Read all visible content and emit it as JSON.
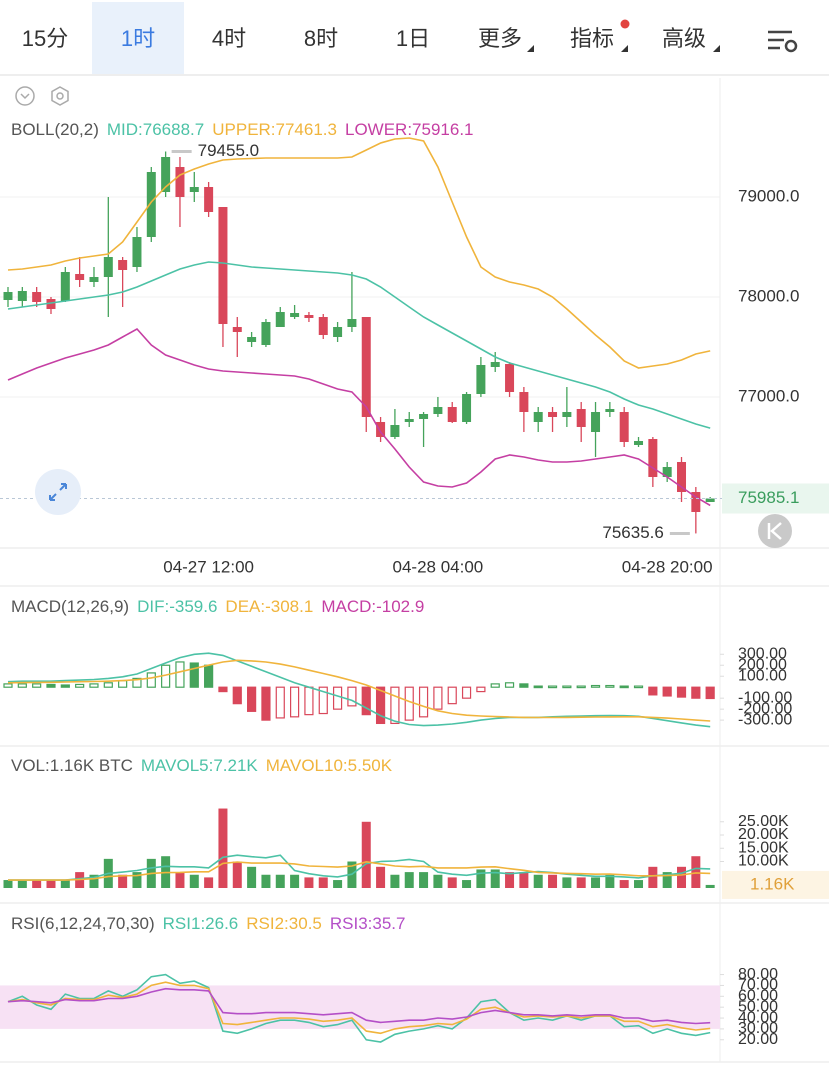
{
  "toolbar": {
    "tabs": [
      "15分",
      "1时",
      "4时",
      "8时",
      "1日",
      "更多",
      "指标",
      "高级"
    ],
    "selected": 1
  },
  "chart_data": [
    {
      "type": "candlestick",
      "title": "BOLL(20,2)",
      "categories": [
        null,
        null,
        null,
        null,
        null,
        null,
        null,
        null,
        null,
        null,
        null,
        null,
        null,
        null,
        "04-27 12:00",
        null,
        null,
        null,
        null,
        null,
        null,
        null,
        null,
        null,
        null,
        null,
        null,
        null,
        null,
        null,
        "04-28 04:00",
        null,
        null,
        null,
        null,
        null,
        null,
        null,
        null,
        null,
        null,
        null,
        null,
        null,
        null,
        null,
        "04-28 20:00",
        null,
        null,
        null
      ],
      "open": [
        77970,
        77960,
        78050,
        77980,
        77960,
        78230,
        78150,
        78200,
        78370,
        78300,
        78600,
        79050,
        79300,
        79050,
        79100,
        78900,
        77700,
        77550,
        77520,
        77700,
        77800,
        77820,
        77800,
        77600,
        77700,
        77800,
        76750,
        76600,
        76750,
        76780,
        76830,
        76900,
        76750,
        77030,
        77300,
        77330,
        77050,
        76750,
        76850,
        76800,
        76880,
        76650,
        76850,
        76850,
        76520,
        76580,
        76200,
        76350,
        76050,
        75950
      ],
      "high": [
        78100,
        78100,
        78100,
        78000,
        78300,
        78400,
        78300,
        79000,
        78400,
        78700,
        79300,
        79455,
        79400,
        79250,
        79150,
        78900,
        77800,
        77650,
        77780,
        77900,
        77920,
        77850,
        77830,
        77750,
        78250,
        77800,
        76800,
        76880,
        76850,
        76850,
        77000,
        76950,
        77050,
        77400,
        77450,
        77350,
        77100,
        76900,
        76900,
        77100,
        76950,
        76950,
        76950,
        76900,
        76600,
        76600,
        76350,
        76400,
        76100,
        76000
      ],
      "low": [
        77900,
        77900,
        77900,
        77830,
        77950,
        78100,
        78100,
        77800,
        77900,
        78250,
        78550,
        79000,
        78700,
        78950,
        78800,
        77500,
        77400,
        77500,
        77500,
        77700,
        77780,
        77750,
        77580,
        77550,
        77650,
        76650,
        76550,
        76580,
        76700,
        76500,
        76800,
        76740,
        76730,
        77000,
        77250,
        77000,
        76650,
        76650,
        76650,
        76700,
        76550,
        76400,
        76800,
        76500,
        76500,
        76100,
        76150,
        75950,
        75635.6,
        75950
      ],
      "close": [
        78050,
        78060,
        77950,
        77880,
        78250,
        78170,
        78200,
        78400,
        78270,
        78600,
        79250,
        79400,
        79000,
        79100,
        78850,
        77730,
        77650,
        77600,
        77750,
        77850,
        77840,
        77790,
        77620,
        77700,
        77780,
        76800,
        76600,
        76720,
        76780,
        76830,
        76900,
        76750,
        77030,
        77320,
        77350,
        77050,
        76850,
        76850,
        76800,
        76850,
        76700,
        76850,
        76880,
        76550,
        76560,
        76200,
        76300,
        76050,
        75850,
        75985.1
      ],
      "up_color": "#45a35b",
      "down_color": "#d9475a",
      "series": [
        {
          "name": "MID:76688.7",
          "color": "#4cc2a6",
          "values": [
            77880,
            77900,
            77920,
            77940,
            77960,
            77980,
            78000,
            78020,
            78050,
            78100,
            78160,
            78220,
            78280,
            78320,
            78350,
            78340,
            78320,
            78300,
            78290,
            78280,
            78270,
            78260,
            78250,
            78240,
            78220,
            78180,
            78100,
            78000,
            77900,
            77800,
            77720,
            77640,
            77560,
            77480,
            77400,
            77340,
            77300,
            77260,
            77220,
            77180,
            77140,
            77100,
            77050,
            76980,
            76920,
            76880,
            76830,
            76780,
            76730,
            76688.7
          ]
        },
        {
          "name": "UPPER:77461.3",
          "color": "#f0b43c",
          "values": [
            78270,
            78280,
            78300,
            78320,
            78360,
            78390,
            78410,
            78430,
            78550,
            78750,
            78950,
            79100,
            79220,
            79280,
            79330,
            79370,
            79380,
            79385,
            79390,
            79390,
            79390,
            79390,
            79390,
            79390,
            79400,
            79470,
            79540,
            79580,
            79590,
            79560,
            79300,
            78950,
            78600,
            78300,
            78200,
            78150,
            78120,
            78080,
            78000,
            77880,
            77750,
            77620,
            77500,
            77360,
            77290,
            77310,
            77330,
            77370,
            77430,
            77461.3
          ]
        },
        {
          "name": "LOWER:75916.1",
          "color": "#c53fa3",
          "values": [
            77170,
            77230,
            77290,
            77340,
            77390,
            77430,
            77470,
            77520,
            77600,
            77680,
            77520,
            77420,
            77370,
            77320,
            77280,
            77260,
            77250,
            77240,
            77230,
            77220,
            77210,
            77180,
            77130,
            77080,
            77050,
            76900,
            76650,
            76480,
            76300,
            76150,
            76110,
            76100,
            76140,
            76250,
            76380,
            76420,
            76400,
            76370,
            76350,
            76350,
            76360,
            76380,
            76400,
            76420,
            76380,
            76290,
            76200,
            76100,
            76000,
            75916.1
          ]
        }
      ],
      "annotations": [
        {
          "value": 79455,
          "label": "79455.0"
        },
        {
          "value": 75635.6,
          "label": "75635.6"
        }
      ],
      "last_price": 75985.1,
      "ylim": [
        75490,
        80170
      ],
      "yticks": [
        {
          "value": 79000,
          "label": "79000.0"
        },
        {
          "value": 78000,
          "label": "78000.0"
        },
        {
          "value": 77000,
          "label": "77000.0"
        }
      ],
      "grid": true
    },
    {
      "type": "macd",
      "title": "MACD(12,26,9)",
      "series": [
        {
          "name": "DIF:-359.6",
          "color": "#4cc2a6",
          "kind": "line",
          "values": [
            50,
            55,
            55,
            55,
            60,
            65,
            70,
            80,
            95,
            120,
            170,
            220,
            270,
            300,
            310,
            290,
            240,
            190,
            140,
            90,
            40,
            0,
            -40,
            -80,
            -120,
            -190,
            -260,
            -310,
            -340,
            -350,
            -345,
            -335,
            -320,
            -300,
            -285,
            -275,
            -275,
            -275,
            -270,
            -265,
            -262,
            -260,
            -258,
            -260,
            -265,
            -285,
            -305,
            -325,
            -345,
            -359.6
          ]
        },
        {
          "name": "DEA:-308.1",
          "color": "#f0b43c",
          "kind": "line",
          "values": [
            40,
            42,
            44,
            45,
            47,
            50,
            52,
            55,
            60,
            68,
            85,
            110,
            140,
            170,
            200,
            230,
            245,
            240,
            230,
            210,
            185,
            155,
            125,
            95,
            60,
            20,
            -30,
            -80,
            -130,
            -175,
            -215,
            -240,
            -255,
            -262,
            -268,
            -272,
            -275,
            -276,
            -276,
            -275,
            -273,
            -272,
            -271,
            -270,
            -270,
            -275,
            -282,
            -290,
            -300,
            -308.1
          ]
        },
        {
          "name": "MACD:-102.9",
          "color": "#c53fa3",
          "kind": "histogram",
          "values": [
            30,
            30,
            30,
            25,
            20,
            25,
            30,
            40,
            60,
            80,
            130,
            200,
            230,
            220,
            200,
            -40,
            -150,
            -220,
            -300,
            -280,
            -270,
            -250,
            -240,
            -200,
            -170,
            -250,
            -330,
            -330,
            -300,
            -270,
            -200,
            -150,
            -100,
            -40,
            30,
            40,
            30,
            10,
            10,
            10,
            10,
            15,
            15,
            10,
            10,
            -70,
            -80,
            -90,
            -100,
            -102.9
          ]
        }
      ],
      "up_color": "#45a35b",
      "down_color": "#d9475a",
      "ylim": [
        -390,
        430
      ],
      "yticks": [
        {
          "value": 300,
          "label": "300.00"
        },
        {
          "value": 200,
          "label": "200.00"
        },
        {
          "value": 100,
          "label": "100.00"
        },
        {
          "value": -100,
          "label": "-100.00"
        },
        {
          "value": -200,
          "label": "-200.00"
        },
        {
          "value": -300,
          "label": "-300.00"
        }
      ]
    },
    {
      "type": "volume",
      "title": "VOL:1.16K BTC",
      "values": [
        3000,
        3000,
        3000,
        3000,
        3000,
        6000,
        5000,
        11000,
        5000,
        6000,
        11000,
        12000,
        6000,
        5000,
        4000,
        30000,
        10000,
        8000,
        5000,
        5000,
        5000,
        4000,
        4000,
        3000,
        10000,
        25000,
        8000,
        5000,
        6000,
        6000,
        5000,
        4000,
        3000,
        7000,
        7000,
        6000,
        6000,
        5000,
        5000,
        4000,
        4000,
        4000,
        5000,
        3000,
        3000,
        8000,
        6000,
        8000,
        12000,
        1160
      ],
      "series": [
        {
          "name": "MAVOL5:7.21K",
          "color": "#4cc2a6",
          "values": [
            3000,
            3000,
            3000,
            3000,
            3000,
            3500,
            4000,
            5500,
            6000,
            6600,
            7600,
            8200,
            8000,
            8000,
            7600,
            11600,
            12400,
            11800,
            11400,
            12400,
            6600,
            5400,
            4600,
            4200,
            5200,
            9200,
            10000,
            10200,
            10800,
            10000,
            6000,
            5200,
            4800,
            5600,
            5800,
            5400,
            5800,
            6200,
            5800,
            5200,
            4800,
            4400,
            4400,
            4200,
            3800,
            4600,
            5000,
            5600,
            7400,
            7210
          ]
        },
        {
          "name": "MAVOL10:5.50K",
          "color": "#f0b43c",
          "values": [
            3000,
            3000,
            3000,
            3000,
            3000,
            3200,
            3500,
            4300,
            4600,
            4700,
            5500,
            5800,
            5900,
            6100,
            6100,
            9300,
            9800,
            9400,
            9400,
            9400,
            9100,
            8300,
            8100,
            7900,
            8300,
            9900,
            9100,
            8300,
            8000,
            8200,
            7600,
            7600,
            7600,
            7900,
            8000,
            7300,
            6700,
            5900,
            5700,
            5500,
            5400,
            5200,
            5300,
            5000,
            4600,
            4600,
            4700,
            4900,
            5700,
            5500
          ]
        }
      ],
      "last_label": {
        "value": 1160,
        "label": "1.16K"
      },
      "ylim": [
        0,
        37000
      ],
      "yticks": [
        {
          "value": 25000,
          "label": "25.00K"
        },
        {
          "value": 20000,
          "label": "20.00K"
        },
        {
          "value": 15000,
          "label": "15.00K"
        },
        {
          "value": 10000,
          "label": "10.00K"
        }
      ]
    },
    {
      "type": "rsi",
      "title": "RSI(6,12,24,70,30)",
      "series": [
        {
          "name": "RSI1:26.6",
          "color": "#4cc2a6",
          "values": [
            55,
            60,
            52,
            48,
            62,
            58,
            58,
            65,
            60,
            66,
            78,
            80,
            72,
            74,
            68,
            28,
            26,
            30,
            35,
            38,
            38,
            36,
            32,
            34,
            38,
            20,
            18,
            25,
            28,
            30,
            33,
            30,
            40,
            55,
            57,
            45,
            38,
            40,
            38,
            42,
            38,
            42,
            42,
            32,
            33,
            26,
            30,
            26,
            24,
            26.6
          ]
        },
        {
          "name": "RSI2:30.5",
          "color": "#f0b43c",
          "values": [
            55,
            57,
            54,
            52,
            58,
            57,
            57,
            61,
            59,
            62,
            70,
            73,
            70,
            70,
            67,
            35,
            34,
            36,
            38,
            40,
            40,
            39,
            37,
            38,
            40,
            28,
            26,
            30,
            32,
            33,
            35,
            34,
            39,
            48,
            50,
            45,
            41,
            42,
            41,
            42,
            40,
            42,
            42,
            37,
            37,
            32,
            34,
            31,
            29,
            30.5
          ]
        },
        {
          "name": "RSI3:35.7",
          "color": "#b44fc7",
          "values": [
            55,
            56,
            55,
            54,
            57,
            56,
            56,
            58,
            58,
            60,
            64,
            67,
            66,
            66,
            65,
            45,
            44,
            44,
            45,
            45,
            45,
            44,
            43,
            44,
            45,
            38,
            36,
            37,
            38,
            38,
            40,
            39,
            41,
            45,
            47,
            45,
            43,
            43,
            42,
            43,
            42,
            43,
            43,
            40,
            40,
            37,
            38,
            36,
            35,
            35.7
          ]
        }
      ],
      "band": [
        30,
        70
      ],
      "band_color": "#f7e1f4",
      "ylim": [
        6,
        98
      ],
      "yticks": [
        {
          "value": 80,
          "label": "80.00"
        },
        {
          "value": 70,
          "label": "70.00"
        },
        {
          "value": 60,
          "label": "60.00"
        },
        {
          "value": 50,
          "label": "50.00"
        },
        {
          "value": 40,
          "label": "40.00"
        },
        {
          "value": 30,
          "label": "30.00"
        },
        {
          "value": 20,
          "label": "20.00"
        }
      ]
    }
  ]
}
